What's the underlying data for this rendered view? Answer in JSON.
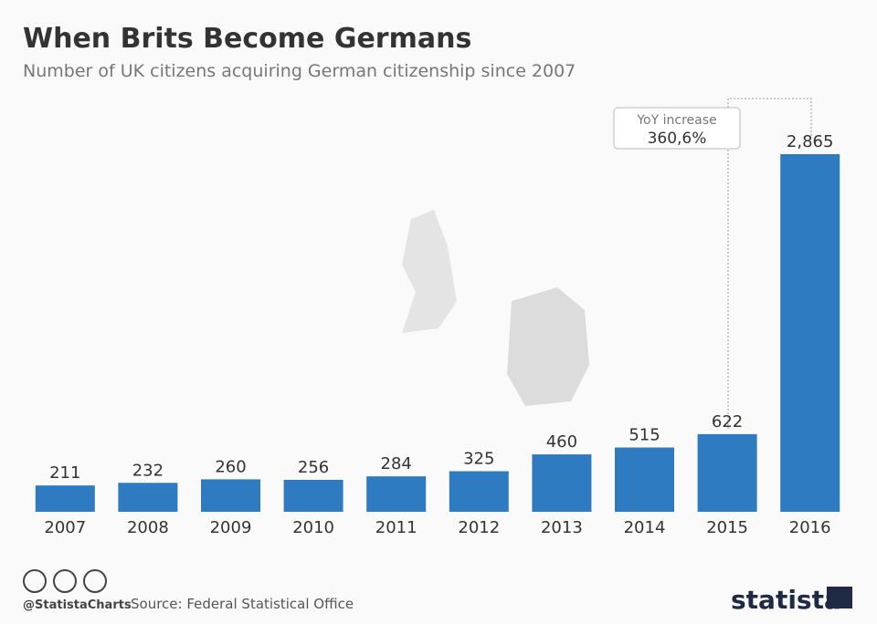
{
  "chart_data": {
    "type": "bar",
    "title": "When Brits Become Germans",
    "subtitle": "Number of UK citizens acquiring German citizenship since 2007",
    "categories": [
      "2007",
      "2008",
      "2009",
      "2010",
      "2011",
      "2012",
      "2013",
      "2014",
      "2015",
      "2016"
    ],
    "values": [
      211,
      232,
      260,
      256,
      284,
      325,
      460,
      515,
      622,
      2865
    ],
    "value_labels": [
      "211",
      "232",
      "260",
      "256",
      "284",
      "325",
      "460",
      "515",
      "622",
      "2,865"
    ],
    "color": "#2f7bc1",
    "annotation": {
      "label": "YoY increase",
      "value": "360,6%"
    },
    "credit": "@StatistaCharts",
    "source": "Source: Federal Statistical Office",
    "brand": "statista"
  }
}
